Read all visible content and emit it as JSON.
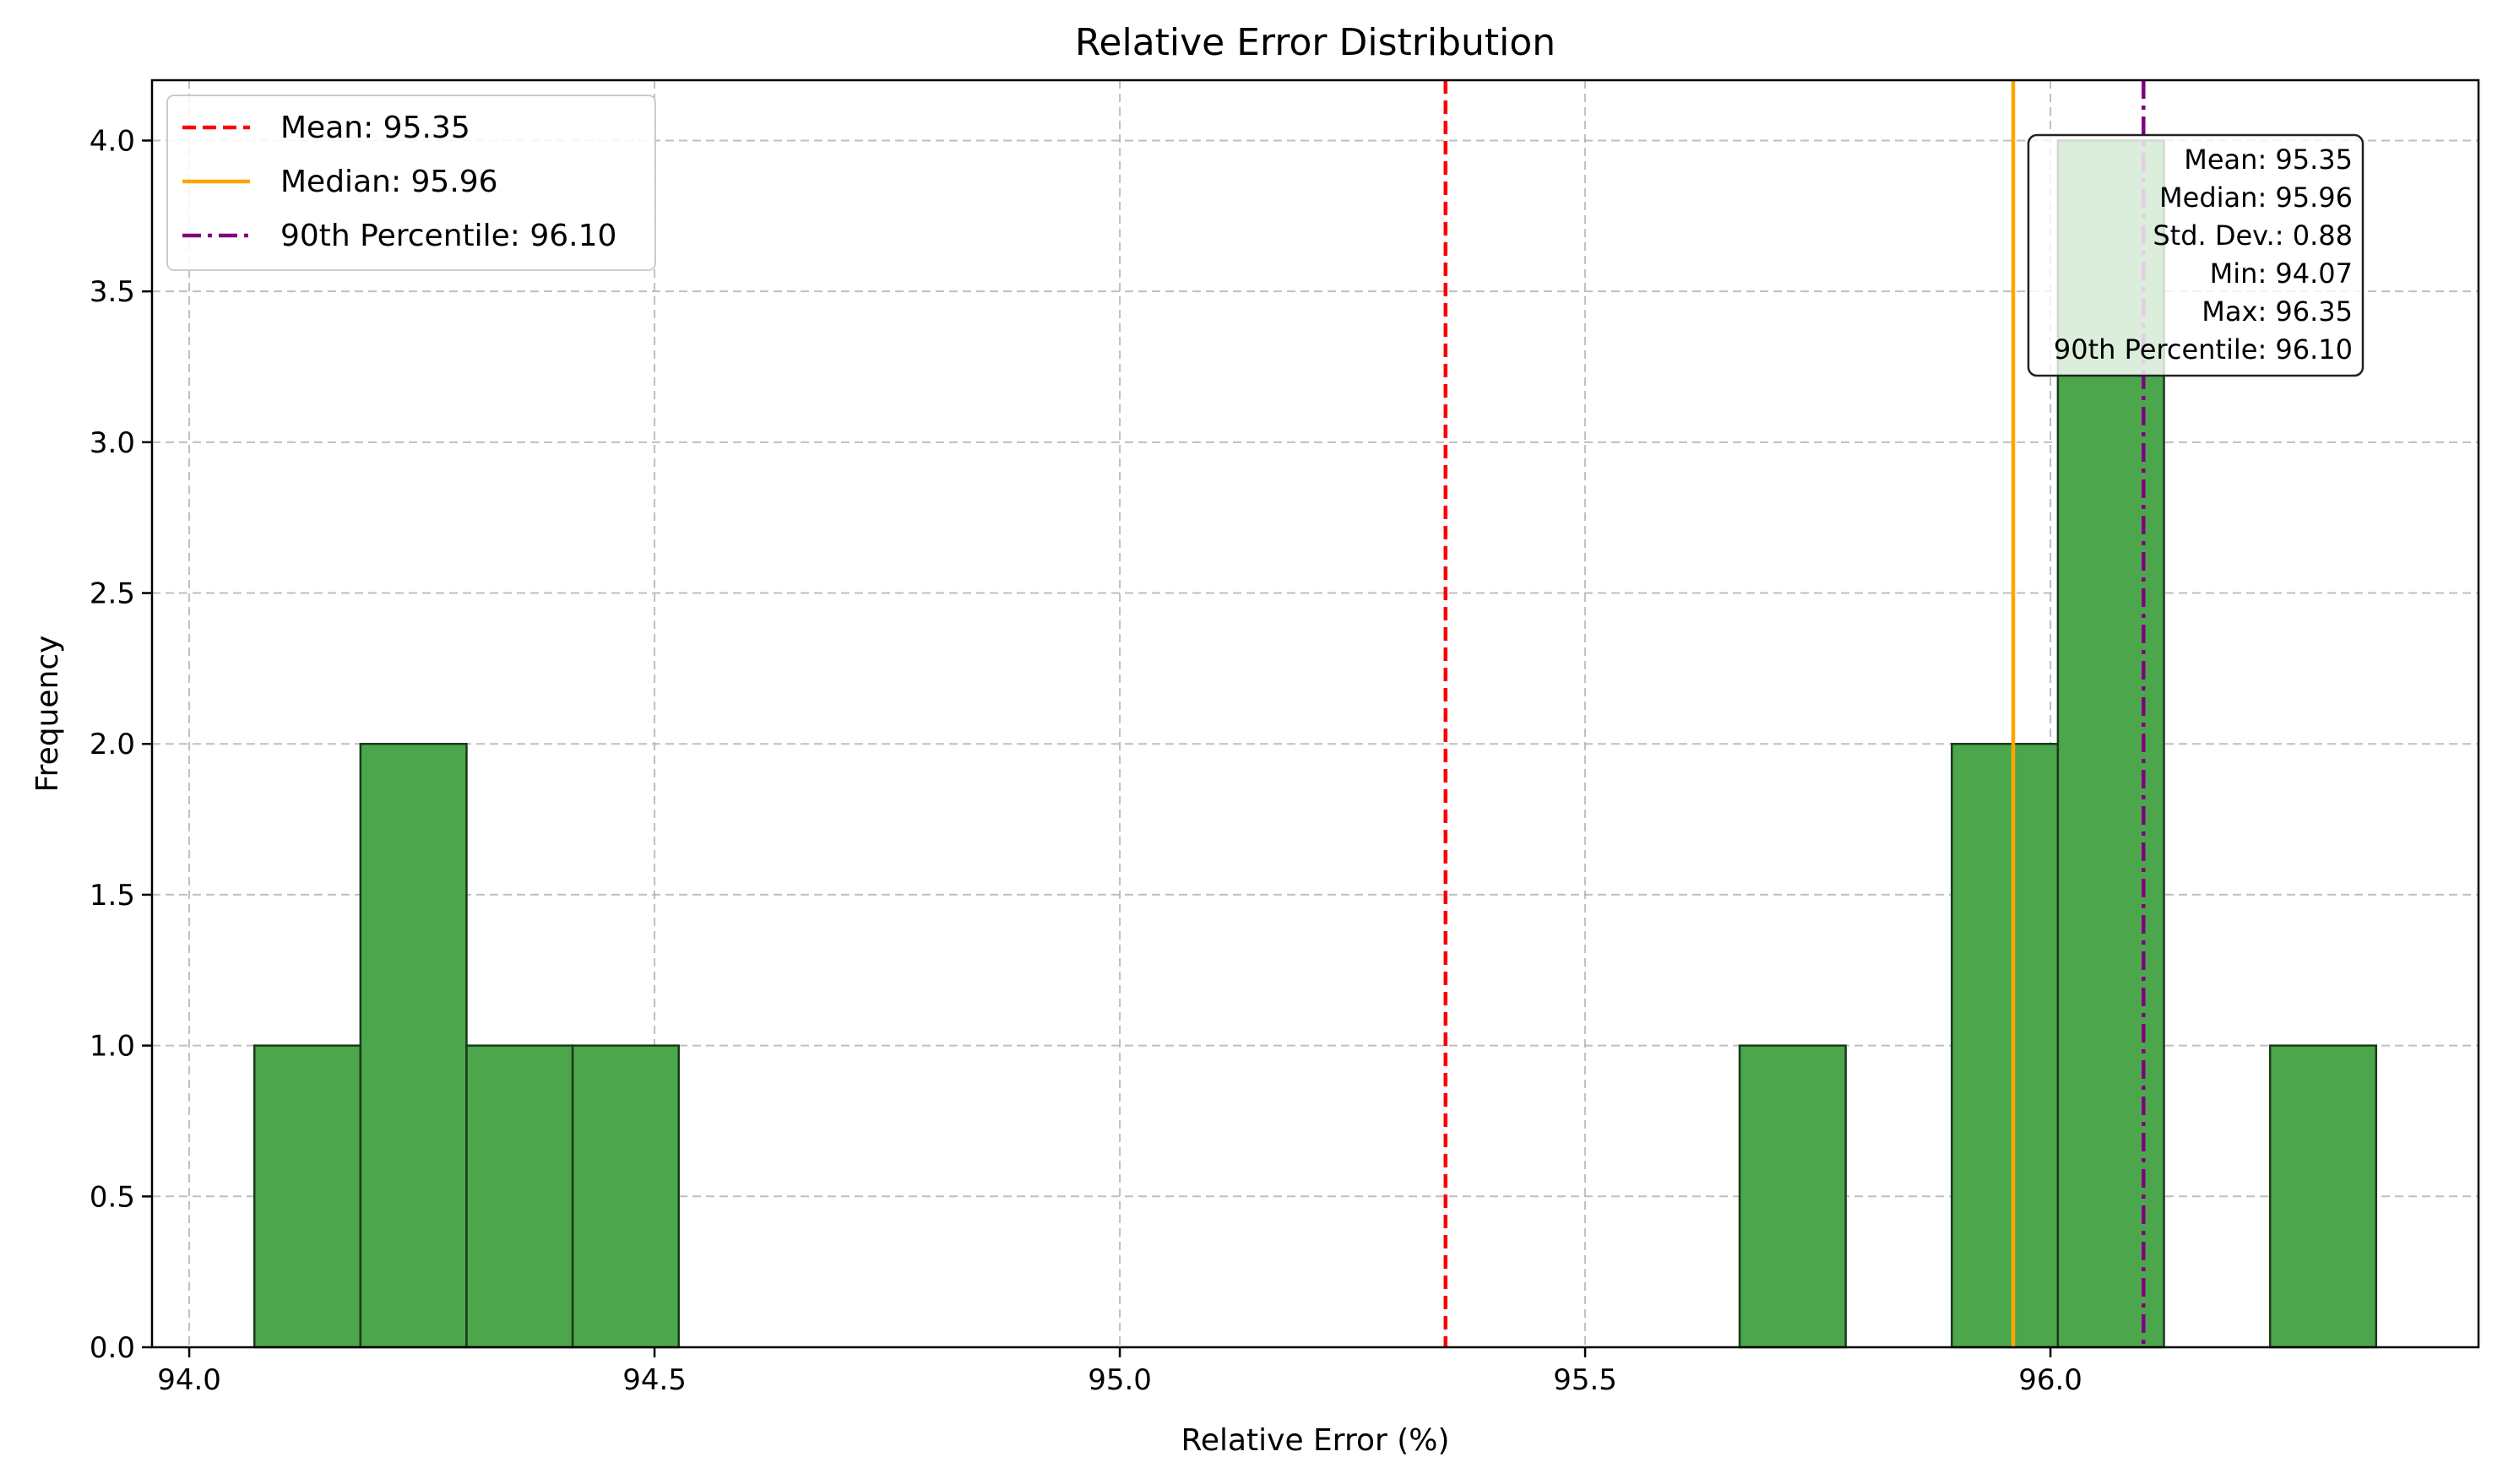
{
  "chart_data": {
    "type": "bar",
    "title": "Relative Error Distribution",
    "xlabel": "Relative Error (%)",
    "ylabel": "Frequency",
    "xlim": [
      93.96,
      96.46
    ],
    "ylim": [
      0,
      4.2
    ],
    "xticks": [
      94.0,
      94.5,
      95.0,
      95.5,
      96.0
    ],
    "xtick_labels": [
      "94.0",
      "94.5",
      "95.0",
      "95.5",
      "96.0"
    ],
    "yticks": [
      0,
      0.5,
      1.0,
      1.5,
      2.0,
      2.5,
      3.0,
      3.5,
      4.0
    ],
    "ytick_labels": [
      "0.0",
      "0.5",
      "1.0",
      "1.5",
      "2.0",
      "2.5",
      "3.0",
      "3.5",
      "4.0"
    ],
    "grid": true,
    "bar_color": "#4ca64c",
    "bar_edge_color": "#1a3a1a",
    "bins": [
      {
        "x0": 94.07,
        "x1": 94.184,
        "count": 1
      },
      {
        "x0": 94.184,
        "x1": 94.298,
        "count": 2
      },
      {
        "x0": 94.298,
        "x1": 94.412,
        "count": 1
      },
      {
        "x0": 94.412,
        "x1": 94.526,
        "count": 1
      },
      {
        "x0": 95.666,
        "x1": 95.78,
        "count": 1
      },
      {
        "x0": 95.894,
        "x1": 96.008,
        "count": 2
      },
      {
        "x0": 96.008,
        "x1": 96.122,
        "count": 4
      },
      {
        "x0": 96.236,
        "x1": 96.35,
        "count": 1
      }
    ],
    "reference_lines": [
      {
        "id": "mean",
        "value": 95.35,
        "label": "Mean: 95.35",
        "color": "#ff0000",
        "style": "dashed"
      },
      {
        "id": "median",
        "value": 95.96,
        "label": "Median: 95.96",
        "color": "#ffa500",
        "style": "solid"
      },
      {
        "id": "p90",
        "value": 96.1,
        "label": "90th Percentile: 96.10",
        "color": "#800080",
        "style": "dashdot"
      }
    ],
    "legend_position": "top-left",
    "stats_box": {
      "position": "top-right",
      "lines": [
        "Mean: 95.35",
        "Median: 95.96",
        "Std. Dev.: 0.88",
        "Min: 94.07",
        "Max: 96.35",
        "90th Percentile: 96.10"
      ]
    }
  }
}
